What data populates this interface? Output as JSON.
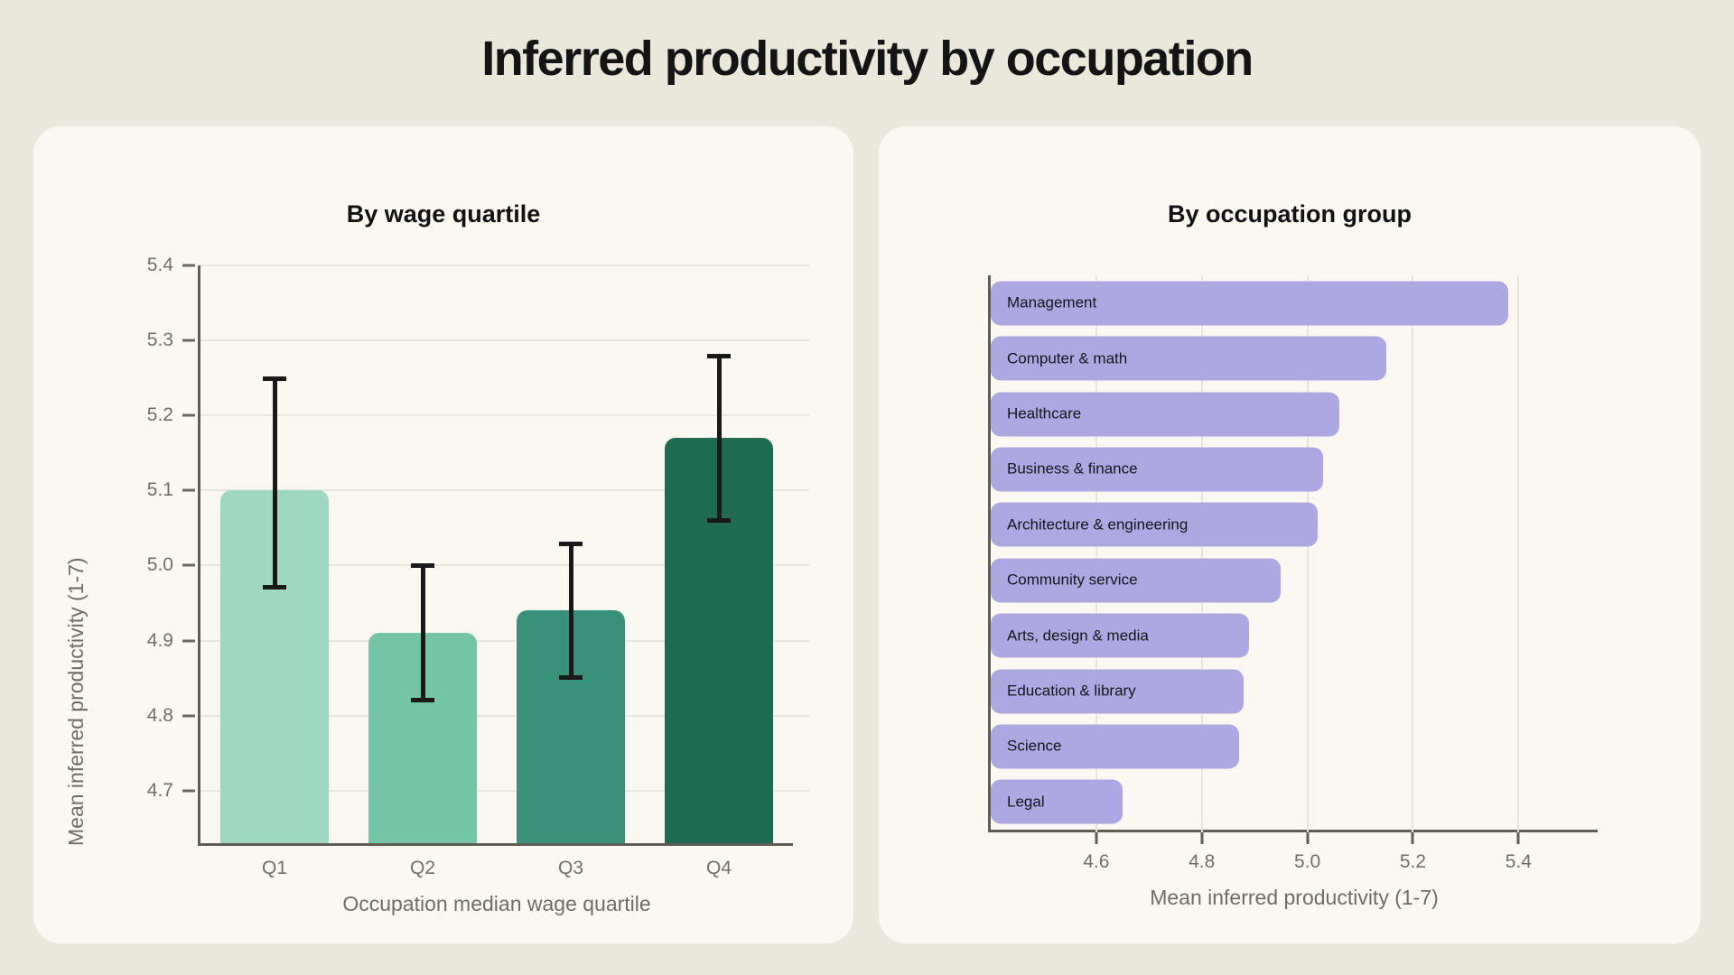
{
  "page": {
    "title": "Inferred productivity by occupation",
    "background": "#e9e8da",
    "card_background": "#faf8f1"
  },
  "colors": {
    "error_bar": "#191919",
    "grid_line": "#e7e5dc",
    "axis_spine": "#5f5d55",
    "tick_text": "#716f68",
    "axis_label_text": "#6f6d66",
    "title_text": "#141414"
  },
  "chart_data": [
    {
      "type": "bar",
      "orientation": "vertical",
      "title": "By wage quartile",
      "xlabel": "Occupation median wage quartile",
      "ylabel": "Mean inferred productivity (1-7)",
      "categories": [
        "Q1",
        "Q2",
        "Q3",
        "Q4"
      ],
      "values": [
        5.1,
        4.91,
        4.94,
        5.17
      ],
      "error_low": [
        4.97,
        4.82,
        4.85,
        5.06
      ],
      "error_high": [
        5.25,
        5.0,
        5.03,
        5.28
      ],
      "ylim": [
        4.63,
        5.4
      ],
      "yticks": [
        "4.7",
        "4.8",
        "4.9",
        "5.0",
        "5.1",
        "5.2",
        "5.3",
        "5.4"
      ],
      "grid": true,
      "legend": "none",
      "bar_colors": [
        "#9fd8c1",
        "#74c4a8",
        "#3a9179",
        "#1f6b52"
      ]
    },
    {
      "type": "bar",
      "orientation": "horizontal",
      "title": "By occupation group",
      "xlabel": "Mean inferred productivity (1-7)",
      "categories": [
        "Management",
        "Computer & math",
        "Healthcare",
        "Business & finance",
        "Architecture & engineering",
        "Community service",
        "Arts, design & media",
        "Education & library",
        "Science",
        "Legal"
      ],
      "values": [
        5.38,
        5.15,
        5.06,
        5.03,
        5.02,
        4.95,
        4.89,
        4.88,
        4.87,
        4.65
      ],
      "xlim": [
        4.4,
        5.55
      ],
      "xticks": [
        "4.6",
        "4.8",
        "5.0",
        "5.2",
        "5.4"
      ],
      "grid": true,
      "legend": "none",
      "bar_color": "#aea8e2"
    }
  ]
}
